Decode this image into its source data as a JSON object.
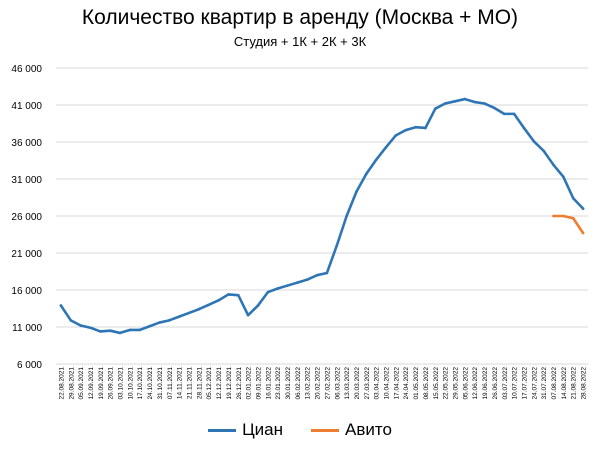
{
  "chart_data": {
    "type": "line",
    "title": "Количество квартир в аренду (Москва + МО)",
    "subtitle": "Студия + 1К + 2К + 3К",
    "y_ticks": [
      "46 000",
      "41 000",
      "36 000",
      "31 000",
      "26 000",
      "21 000",
      "16 000",
      "11 000",
      "6 000"
    ],
    "ylim": [
      6000,
      46000
    ],
    "grid": "horizontal",
    "legend_position": "bottom",
    "x": [
      "22.08.2021",
      "29.08.2021",
      "05.09.2021",
      "12.09.2021",
      "19.09.2021",
      "26.09.2021",
      "03.10.2021",
      "10.10.2021",
      "17.10.2021",
      "24.10.2021",
      "31.10.2021",
      "07.11.2021",
      "14.11.2021",
      "21.11.2021",
      "28.11.2021",
      "05.12.2021",
      "12.12.2021",
      "19.12.2021",
      "26.12.2021",
      "02.01.2022",
      "09.01.2022",
      "16.01.2022",
      "23.01.2022",
      "30.01.2022",
      "06.02.2022",
      "13.02.2022",
      "20.02.2022",
      "27.02.2022",
      "06.03.2022",
      "13.03.2022",
      "20.03.2022",
      "27.03.2022",
      "03.04.2022",
      "10.04.2022",
      "17.04.2022",
      "24.04.2022",
      "01.05.2022",
      "08.05.2022",
      "15.05.2022",
      "22.05.2022",
      "29.05.2022",
      "05.06.2022",
      "12.06.2022",
      "19.06.2022",
      "26.06.2022",
      "03.07.2022",
      "10.07.2022",
      "17.07.2022",
      "24.07.2022",
      "31.07.2022",
      "07.08.2022",
      "14.08.2022",
      "21.08.2022",
      "28.08.2022"
    ],
    "series": [
      {
        "name": "Циан",
        "color": "#2e75b6",
        "values": [
          13900,
          11900,
          11200,
          10900,
          10400,
          10500,
          10200,
          10600,
          10600,
          11100,
          11600,
          11900,
          12400,
          12900,
          13400,
          14000,
          14600,
          15400,
          15300,
          12600,
          13900,
          15700,
          16200,
          16600,
          17000,
          17400,
          18000,
          18300,
          22000,
          26000,
          29300,
          31700,
          33600,
          35300,
          36900,
          37600,
          38000,
          37900,
          40500,
          41200,
          41500,
          41800,
          41400,
          41200,
          40600,
          39800,
          39800,
          37900,
          36100,
          34800,
          32900,
          31300,
          28400,
          27000
        ]
      },
      {
        "name": "Авито",
        "color": "#ed7d31",
        "values": [
          null,
          null,
          null,
          null,
          null,
          null,
          null,
          null,
          null,
          null,
          null,
          null,
          null,
          null,
          null,
          null,
          null,
          null,
          null,
          null,
          null,
          null,
          null,
          null,
          null,
          null,
          null,
          null,
          null,
          null,
          null,
          null,
          null,
          null,
          null,
          null,
          null,
          null,
          null,
          null,
          null,
          null,
          null,
          null,
          null,
          null,
          null,
          null,
          null,
          null,
          26000,
          26000,
          25700,
          23700
        ]
      }
    ]
  }
}
